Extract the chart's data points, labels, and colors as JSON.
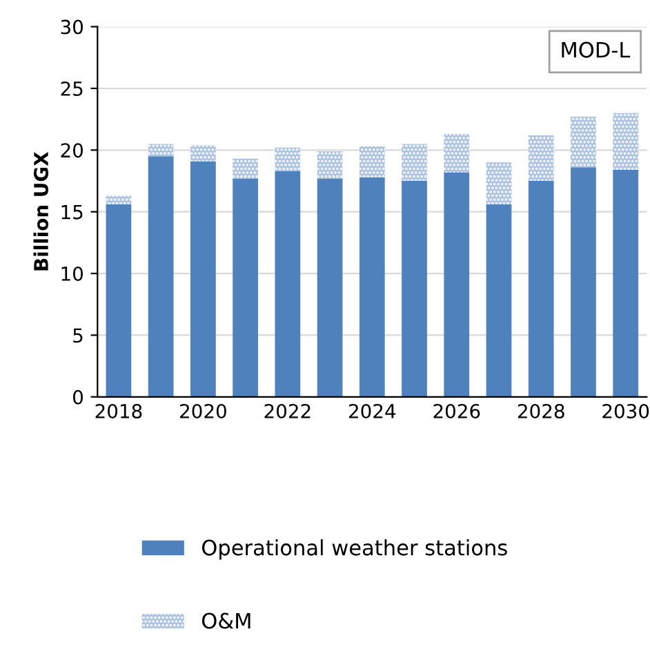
{
  "chart_data": {
    "type": "bar",
    "stacked": true,
    "ylabel": "Billion UGX",
    "annotations": [
      "MOD-L"
    ],
    "categories": [
      "2018",
      null,
      "2020",
      null,
      "2022",
      null,
      "2024",
      null,
      "2026",
      null,
      "2028",
      null,
      "2030"
    ],
    "series": [
      {
        "name": "Operational weather stations",
        "color": "#4f81bd",
        "values": [
          15.6,
          19.5,
          19.1,
          17.7,
          18.3,
          17.7,
          17.8,
          17.5,
          18.2,
          15.6,
          17.5,
          18.6,
          18.4
        ]
      },
      {
        "name": "O&M",
        "color": "#a9c0e0",
        "values": [
          0.7,
          1.0,
          1.3,
          1.6,
          1.9,
          2.2,
          2.5,
          3.0,
          3.1,
          3.4,
          3.7,
          4.1,
          4.6
        ]
      }
    ],
    "ylim": [
      0,
      30
    ],
    "yticks": [
      0,
      5,
      10,
      15,
      20,
      25,
      30
    ],
    "grid": "y",
    "legend": "bottom"
  }
}
